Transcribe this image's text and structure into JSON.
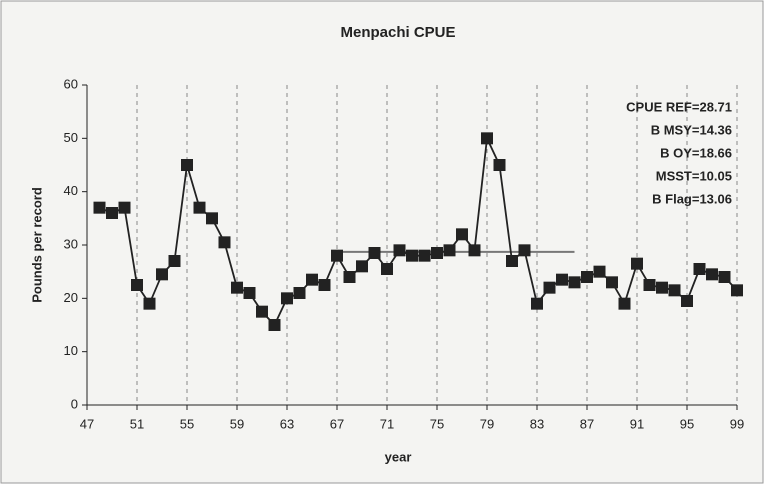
{
  "chart_data": {
    "type": "line",
    "title": "Menpachi CPUE",
    "x_label": "year",
    "y_label": "Pounds per record",
    "x": [
      48,
      49,
      50,
      51,
      52,
      53,
      54,
      55,
      56,
      57,
      58,
      59,
      60,
      61,
      62,
      63,
      64,
      65,
      66,
      67,
      68,
      69,
      70,
      71,
      72,
      73,
      74,
      75,
      76,
      77,
      78,
      79,
      80,
      81,
      82,
      83,
      84,
      85,
      86,
      87,
      88,
      89,
      90,
      91,
      92,
      93,
      94,
      95,
      96,
      97,
      98,
      99
    ],
    "series": [
      {
        "name": "CPUE",
        "color": "#222222",
        "values": [
          37,
          36,
          37,
          22.5,
          19,
          24.5,
          27,
          45,
          37,
          35,
          30.5,
          22,
          21,
          17.5,
          15,
          20,
          21,
          23.5,
          22.5,
          28,
          24,
          26,
          28.5,
          25.5,
          29,
          28,
          28,
          28.5,
          29,
          32,
          29,
          50,
          45,
          27,
          29,
          19,
          22,
          23.5,
          23,
          24,
          25,
          23,
          19,
          26.5,
          22.5,
          22,
          21.5,
          19.5,
          25.5,
          24.5,
          24,
          21.5
        ]
      }
    ],
    "ref_line": {
      "value": 28.71,
      "x": [
        67,
        86
      ]
    },
    "annotations": [
      "CPUE REF=28.71",
      "B MSY=14.36",
      "B OY=18.66",
      "MSST=10.05",
      "B Flag=13.06"
    ],
    "xlim": [
      47,
      99
    ],
    "xticks": [
      47,
      51,
      55,
      59,
      63,
      67,
      71,
      75,
      79,
      83,
      87,
      91,
      95,
      99
    ],
    "ylim": [
      0,
      60
    ],
    "yticks": [
      0,
      10,
      20,
      30,
      40,
      50,
      60
    ],
    "grid": "x"
  }
}
